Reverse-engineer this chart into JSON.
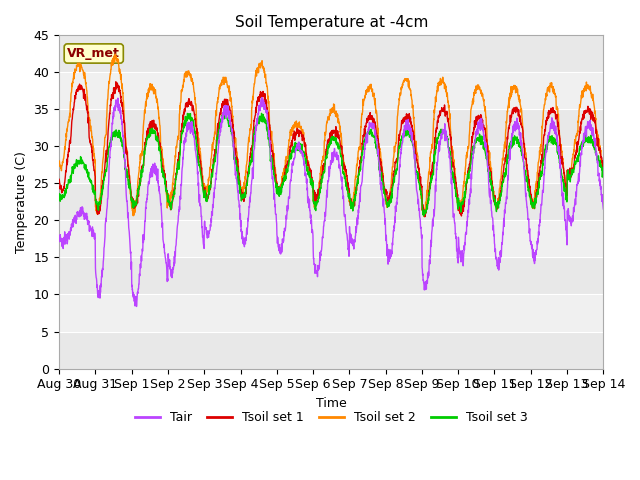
{
  "title": "Soil Temperature at -4cm",
  "xlabel": "Time",
  "ylabel": "Temperature (C)",
  "ylim": [
    0,
    45
  ],
  "background_color": "#ffffff",
  "plot_bg_color": "#e8e8e8",
  "colors": {
    "Tair": "#bb44ff",
    "Tsoil_set1": "#dd0000",
    "Tsoil_set2": "#ff8800",
    "Tsoil_set3": "#00cc00"
  },
  "legend_labels": [
    "Tair",
    "Tsoil set 1",
    "Tsoil set 2",
    "Tsoil set 3"
  ],
  "vr_label": "VR_met",
  "x_tick_labels": [
    "Aug 30",
    "Aug 31",
    "Sep 1",
    "Sep 2",
    "Sep 3",
    "Sep 4",
    "Sep 5",
    "Sep 6",
    "Sep 7",
    "Sep 8",
    "Sep 9",
    "Sep 10",
    "Sep 11",
    "Sep 12",
    "Sep 13",
    "Sep 14"
  ],
  "y_ticks": [
    0,
    5,
    10,
    15,
    20,
    25,
    30,
    35,
    40,
    45
  ],
  "line_width": 1.0,
  "font_size": 9,
  "grid_color": "#d0d0d0",
  "grid_band_color": "#f0f0f0"
}
